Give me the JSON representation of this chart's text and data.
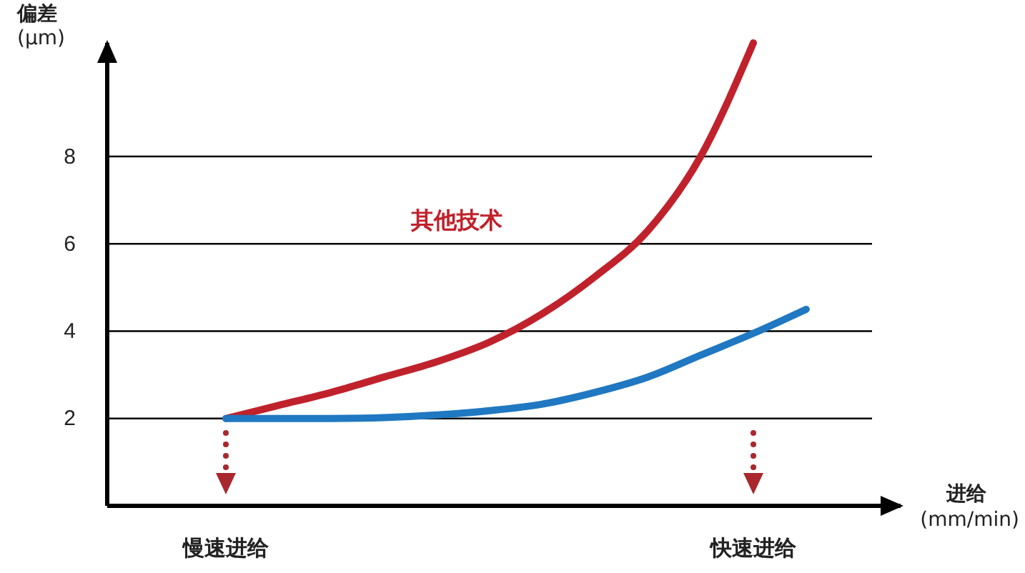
{
  "chart_data": {
    "type": "line",
    "ylabel": "偏差\n(μm)",
    "xlabel": "进给\n(mm/min)",
    "categories": [
      "慢速进给",
      null,
      null,
      null,
      null,
      null,
      null,
      null,
      null,
      null,
      "快速进给",
      null
    ],
    "ylim": [
      0,
      10.6
    ],
    "yticks": [
      2,
      4,
      6,
      8
    ],
    "grid": "y",
    "legend": false,
    "marker": "none",
    "line_style": "solid",
    "series": [
      {
        "name": "其他技术",
        "color": "#c0222c",
        "values": [
          2,
          2.3,
          2.6,
          2.95,
          3.3,
          3.75,
          4.4,
          5.25,
          6.3,
          8.0,
          10.6,
          null
        ]
      },
      {
        "color": "#1f78c1",
        "values": [
          2,
          2,
          2,
          2.02,
          2.08,
          2.18,
          2.33,
          2.6,
          2.95,
          3.45,
          3.95,
          4.5
        ]
      }
    ]
  }
}
